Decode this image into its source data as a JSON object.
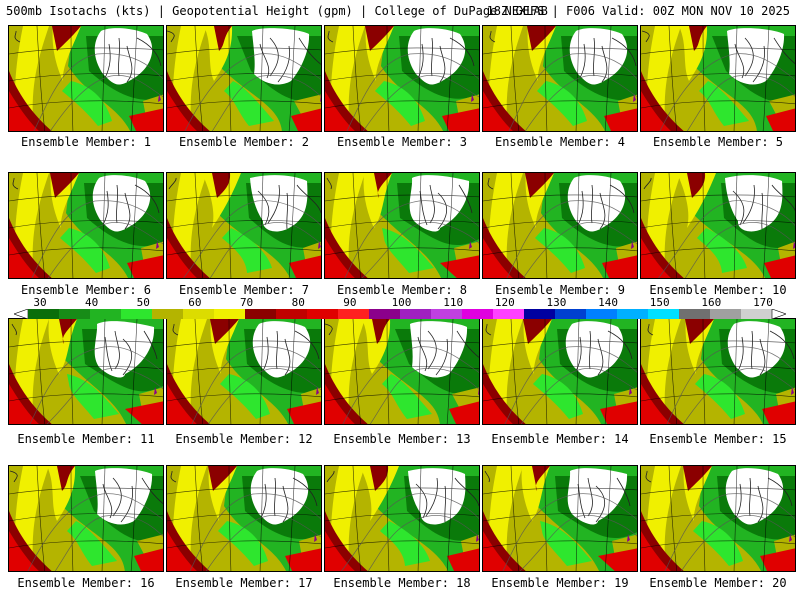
{
  "header": {
    "left": "500mb Isotachs (kts) | Geopotential Height (gpm) | College of DuPage NEXLAB",
    "right": "18Z GEFS | F006 Valid: 00Z MON NOV 10 2025"
  },
  "member_label_prefix": "Ensemble Member:",
  "members": [
    {
      "label": "Ensemble Member: 1"
    },
    {
      "label": "Ensemble Member: 2"
    },
    {
      "label": "Ensemble Member: 3"
    },
    {
      "label": "Ensemble Member: 4"
    },
    {
      "label": "Ensemble Member: 5"
    },
    {
      "label": "Ensemble Member: 6"
    },
    {
      "label": "Ensemble Member: 7"
    },
    {
      "label": "Ensemble Member: 8"
    },
    {
      "label": "Ensemble Member: 9"
    },
    {
      "label": "Ensemble Member: 10"
    },
    {
      "label": "Ensemble Member: 11"
    },
    {
      "label": "Ensemble Member: 12"
    },
    {
      "label": "Ensemble Member: 13"
    },
    {
      "label": "Ensemble Member: 14"
    },
    {
      "label": "Ensemble Member: 15"
    },
    {
      "label": "Ensemble Member: 16"
    },
    {
      "label": "Ensemble Member: 17"
    },
    {
      "label": "Ensemble Member: 18"
    },
    {
      "label": "Ensemble Member: 19"
    },
    {
      "label": "Ensemble Member: 20"
    }
  ],
  "colorbar": {
    "labels": [
      "30",
      "40",
      "50",
      "60",
      "70",
      "80",
      "90",
      "100",
      "110",
      "120",
      "130",
      "140",
      "150",
      "160",
      "170"
    ],
    "colors": [
      "#0a6e0a",
      "#178c17",
      "#22b422",
      "#2ee62e",
      "#b4b400",
      "#dcdc00",
      "#f0f000",
      "#8b0000",
      "#c00000",
      "#e00000",
      "#ff2020",
      "#8b008b",
      "#a020c0",
      "#c040e0",
      "#e000e0",
      "#ff40ff",
      "#0000a0",
      "#0040d0",
      "#0080ff",
      "#00b0ff",
      "#00e0ff",
      "#707070",
      "#a0a0a0",
      "#d0d0d0"
    ]
  },
  "map_colors": {
    "dark_green": "#0a7a0a",
    "mid_green": "#22b422",
    "bright_green": "#2ee62e",
    "olive": "#b4b400",
    "yellow": "#f0f000",
    "dark_red": "#8b0000",
    "red": "#e00000",
    "white": "#ffffff",
    "purple": "#8b008b"
  }
}
